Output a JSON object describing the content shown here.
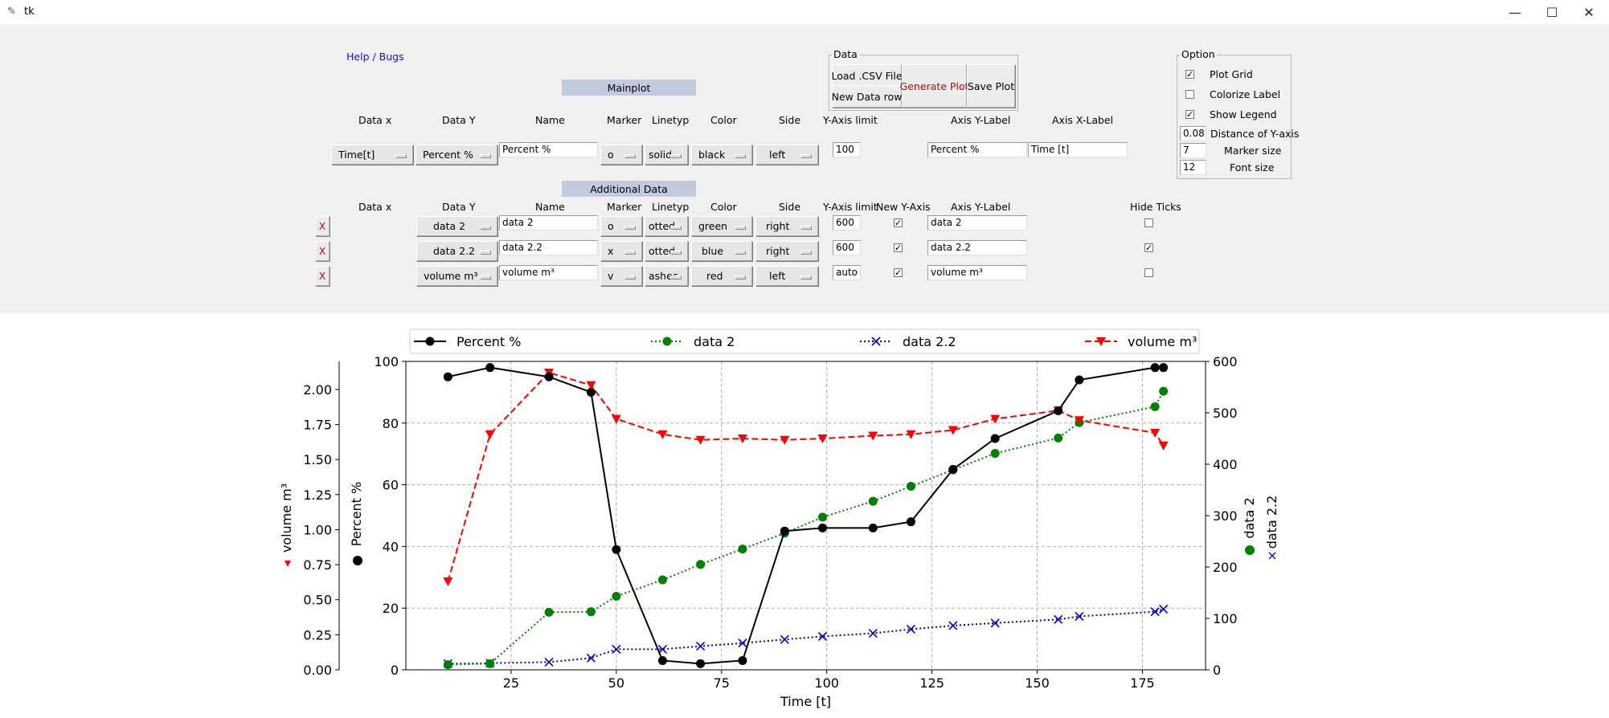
{
  "window": {
    "title": "tk",
    "minimize": "—",
    "maximize": "☐",
    "close": "✕"
  },
  "help_link": "Help / Bugs",
  "data_frame": {
    "title": "Data",
    "load_csv": "Load .CSV File",
    "new_row": "New Data row",
    "generate": "Generate Plot",
    "save": "Save Plot"
  },
  "options": {
    "title": "Option",
    "plot_grid": {
      "label": "Plot Grid",
      "checked": true
    },
    "colorize_label": {
      "label": "Colorize Label",
      "checked": false
    },
    "show_legend": {
      "label": "Show Legend",
      "checked": true
    },
    "distance_y": {
      "value": "0.08",
      "label": "Distance of Y-axis"
    },
    "marker_size": {
      "value": "7",
      "label": "Marker size"
    },
    "font_size": {
      "value": "12",
      "label": "Font size"
    }
  },
  "mainplot": {
    "section": "Mainplot",
    "headers": {
      "data_x": "Data x",
      "data_y": "Data Y",
      "name": "Name",
      "marker": "Marker",
      "linetype": "Linetyp",
      "color": "Color",
      "side": "Side",
      "ylimit": "Y-Axis limit",
      "ylabel": "Axis Y-Label",
      "xlabel": "Axis X-Label"
    },
    "row": {
      "data_x": "Time[t]",
      "data_y": "Percent %",
      "name": "Percent %",
      "marker": "o",
      "linetype": "solid",
      "color": "black",
      "side": "left",
      "ylimit": "100",
      "ylabel": "Percent %",
      "xlabel": "Time [t]"
    }
  },
  "additional": {
    "section": "Additional Data",
    "headers": {
      "data_x": "Data x",
      "data_y": "Data Y",
      "name": "Name",
      "marker": "Marker",
      "linetype": "Linetyp",
      "color": "Color",
      "side": "Side",
      "ylimit": "Y-Axis limit",
      "new_axis": "New Y-Axis",
      "ylabel": "Axis Y-Label",
      "hide_ticks": "Hide Ticks"
    },
    "rows": [
      {
        "remove": "X",
        "data_y": "data 2",
        "name": "data 2",
        "marker": "o",
        "linetype": "otted",
        "color": "green",
        "side": "right",
        "ylimit": "600",
        "new_axis": true,
        "ylabel": "data 2",
        "hide_ticks": false
      },
      {
        "remove": "X",
        "data_y": "data 2.2",
        "name": "data 2.2",
        "marker": "x",
        "linetype": "otted",
        "color": "blue",
        "side": "right",
        "ylimit": "600",
        "new_axis": true,
        "ylabel": "data 2.2",
        "hide_ticks": true
      },
      {
        "remove": "X",
        "data_y": "volume m³",
        "name": "volume m³",
        "marker": "v",
        "linetype": "ashec",
        "color": "red",
        "side": "left",
        "ylimit": "auto",
        "new_axis": true,
        "ylabel": "volume m³",
        "hide_ticks": false
      }
    ]
  },
  "chart_data": {
    "type": "line",
    "xlabel": "Time [t]",
    "xlim": [
      0,
      190
    ],
    "xticks": [
      25,
      50,
      75,
      100,
      125,
      150,
      175
    ],
    "grid": true,
    "legend_placement": "top",
    "axes": {
      "left_inner": {
        "label": "Percent %",
        "range": [
          0,
          100
        ],
        "ticks": [
          0,
          20,
          40,
          60,
          80,
          100
        ]
      },
      "left_outer": {
        "label": "volume m³",
        "range": [
          0,
          2.2
        ],
        "ticks": [
          "0.00",
          "0.25",
          "0.50",
          "0.75",
          "1.00",
          "1.25",
          "1.50",
          "1.75",
          "2.00"
        ]
      },
      "right": {
        "labels": [
          "data 2",
          "data 2.2"
        ],
        "range": [
          0,
          600
        ],
        "ticks": [
          0,
          100,
          200,
          300,
          400,
          500,
          600
        ]
      }
    },
    "series": [
      {
        "name": "Percent %",
        "axis": "left_inner",
        "color": "#000000",
        "marker": "o",
        "line": "solid",
        "x": [
          10,
          20,
          34,
          44,
          50,
          61,
          70,
          80,
          90,
          99,
          111,
          120,
          130,
          140,
          155,
          160,
          178,
          180
        ],
        "y": [
          95,
          98,
          95,
          90,
          39,
          3,
          2,
          3,
          45,
          46,
          46,
          48,
          65,
          75,
          84,
          94,
          98,
          98
        ]
      },
      {
        "name": "data 2",
        "axis": "right",
        "color": "#008000",
        "marker": "o",
        "line": "dotted",
        "x": [
          10,
          20,
          34,
          44,
          50,
          61,
          70,
          80,
          90,
          99,
          111,
          120,
          130,
          140,
          155,
          160,
          178,
          180
        ],
        "y": [
          10,
          12,
          112,
          113,
          143,
          175,
          205,
          235,
          266,
          297,
          328,
          357,
          389,
          421,
          451,
          481,
          512,
          542
        ]
      },
      {
        "name": "data 2.2",
        "axis": "right",
        "color": "#0000cc",
        "marker": "x",
        "line": "dotted",
        "x": [
          10,
          20,
          34,
          44,
          50,
          61,
          70,
          80,
          90,
          99,
          111,
          120,
          130,
          140,
          155,
          160,
          178,
          180
        ],
        "y": [
          12,
          13,
          15,
          23,
          40,
          40,
          46,
          52,
          59,
          65,
          71,
          79,
          86,
          91,
          98,
          104,
          113,
          118
        ]
      },
      {
        "name": "volume m³",
        "axis": "left_outer",
        "color": "#ff0000",
        "marker": "v",
        "line": "dashed",
        "x": [
          10,
          20,
          34,
          44,
          50,
          61,
          70,
          80,
          90,
          99,
          111,
          120,
          130,
          140,
          155,
          160,
          178,
          180
        ],
        "y": [
          0.63,
          1.68,
          2.12,
          2.03,
          1.79,
          1.68,
          1.64,
          1.65,
          1.64,
          1.65,
          1.67,
          1.68,
          1.71,
          1.79,
          1.85,
          1.78,
          1.69,
          1.6
        ]
      }
    ]
  }
}
